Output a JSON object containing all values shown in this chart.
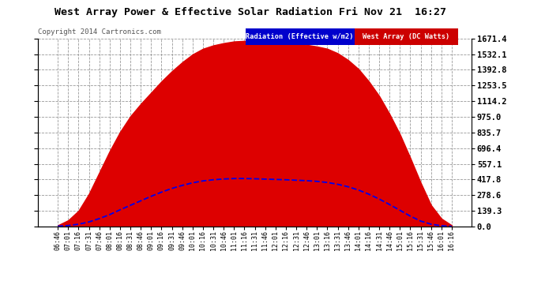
{
  "title": "West Array Power & Effective Solar Radiation Fri Nov 21  16:27",
  "copyright": "Copyright 2014 Cartronics.com",
  "legend_radiation": "Radiation (Effective w/m2)",
  "legend_west": "West Array (DC Watts)",
  "legend_radiation_color": "#0000cc",
  "legend_west_color": "#cc0000",
  "bg_color": "#ffffff",
  "plot_bg_color": "#ffffff",
  "grid_color": "#999999",
  "fill_color": "#dd0000",
  "line_color_blue": "#0000ee",
  "ylim": [
    0.0,
    1671.4
  ],
  "yticks": [
    0.0,
    139.3,
    278.6,
    417.8,
    557.1,
    696.4,
    835.7,
    975.0,
    1114.2,
    1253.5,
    1392.8,
    1532.1,
    1671.4
  ],
  "time_labels": [
    "06:46",
    "07:01",
    "07:16",
    "07:31",
    "07:46",
    "08:01",
    "08:16",
    "08:31",
    "08:46",
    "09:01",
    "09:16",
    "09:31",
    "09:46",
    "10:01",
    "10:16",
    "10:31",
    "10:46",
    "11:01",
    "11:16",
    "11:31",
    "11:46",
    "12:01",
    "12:16",
    "12:31",
    "12:46",
    "13:01",
    "13:16",
    "13:31",
    "13:46",
    "14:01",
    "14:16",
    "14:31",
    "14:46",
    "15:01",
    "15:16",
    "15:31",
    "15:46",
    "16:01",
    "16:16"
  ],
  "red_fill_values": [
    10,
    55,
    140,
    290,
    480,
    670,
    840,
    980,
    1090,
    1190,
    1290,
    1380,
    1460,
    1530,
    1580,
    1610,
    1630,
    1645,
    1650,
    1648,
    1640,
    1635,
    1630,
    1625,
    1615,
    1600,
    1580,
    1540,
    1480,
    1400,
    1290,
    1160,
    1000,
    820,
    610,
    390,
    190,
    70,
    10
  ],
  "blue_line_values": [
    2,
    8,
    20,
    40,
    70,
    105,
    148,
    188,
    228,
    268,
    305,
    338,
    365,
    388,
    405,
    415,
    422,
    426,
    426,
    424,
    421,
    418,
    415,
    411,
    407,
    401,
    391,
    375,
    353,
    324,
    287,
    244,
    195,
    144,
    92,
    48,
    20,
    6,
    1
  ]
}
